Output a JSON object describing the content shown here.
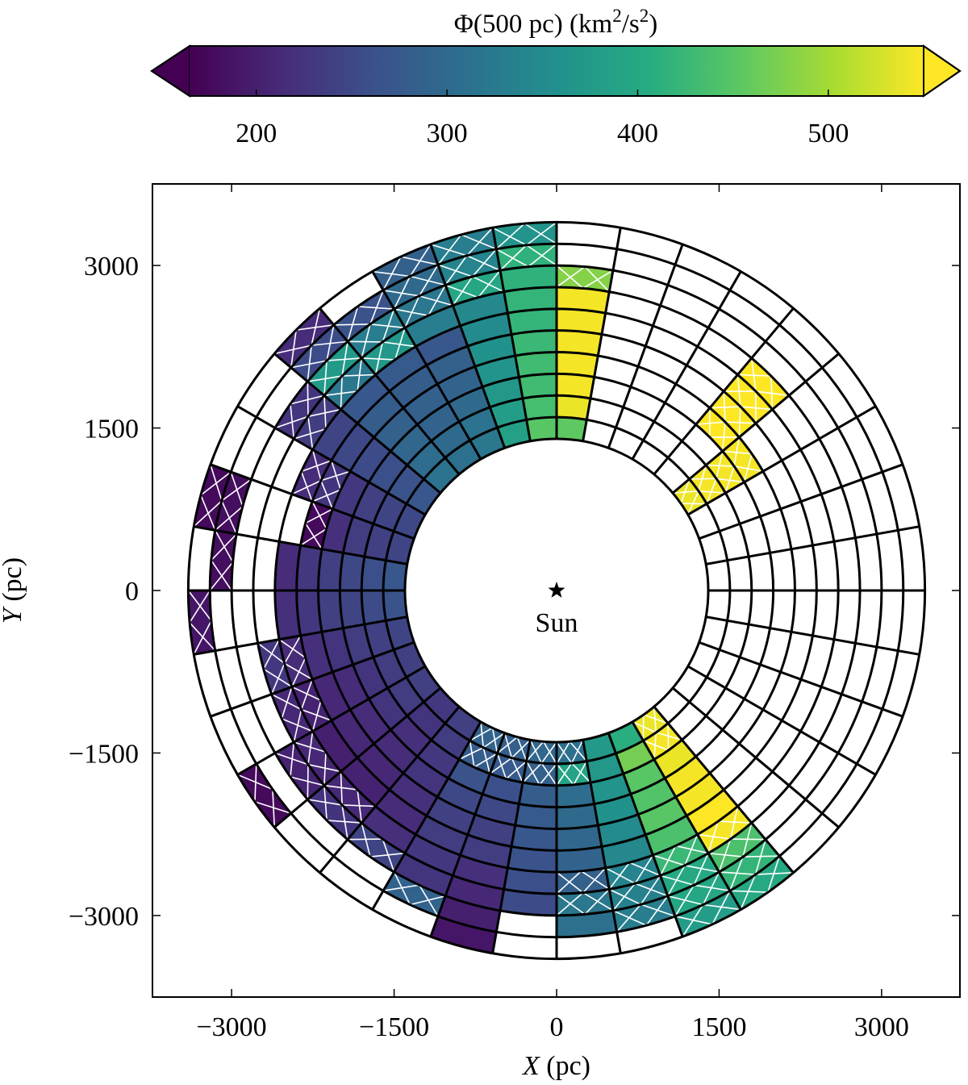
{
  "chart_data": {
    "type": "heatmap",
    "subtype": "polar-grid",
    "colorbar": {
      "label_main": "Φ(500 pc) (km",
      "label_unit_sq": "2",
      "label_mid": "/s",
      "label_unit_sq2": "2",
      "label_close": ")",
      "range": [
        165,
        550
      ],
      "ticks": [
        "200",
        "300",
        "400",
        "500"
      ],
      "tick_values": [
        200,
        300,
        400,
        500
      ],
      "colormap": "viridis",
      "extend": "both"
    },
    "xlabel": "X",
    "xlabel_unit": " (pc)",
    "ylabel": "Y",
    "ylabel_unit": " (pc)",
    "xlim": [
      -3750,
      3750
    ],
    "ylim": [
      -3750,
      3750
    ],
    "x_ticks": [
      "−3000",
      "−1500",
      "0",
      "1500",
      "3000"
    ],
    "x_tick_values": [
      -3000,
      -1500,
      0,
      1500,
      3000
    ],
    "y_ticks": [
      "3000",
      "1500",
      "0",
      "−1500",
      "−3000"
    ],
    "y_tick_values": [
      3000,
      1500,
      0,
      -1500,
      -3000
    ],
    "grid": {
      "r_inner": 1400,
      "r_outer": 3400,
      "n_rings": 10,
      "n_sectors": 36
    },
    "annotation": "Sun",
    "cells": [
      {
        "sector": 3,
        "ring": 0,
        "value": 540
      },
      {
        "sector": 3,
        "ring": 1,
        "value": 545
      },
      {
        "sector": 3,
        "ring": 2,
        "value": 545
      },
      {
        "sector": 3,
        "ring": 3,
        "value": 545
      },
      {
        "sector": 4,
        "ring": 3,
        "value": 550
      },
      {
        "sector": 4,
        "ring": 4,
        "value": 550
      },
      {
        "sector": 4,
        "ring": 5,
        "value": 550
      },
      {
        "sector": 4,
        "ring": 6,
        "value": 550
      },
      {
        "sector": 8,
        "ring": 0,
        "value": 455
      },
      {
        "sector": 8,
        "ring": 1,
        "value": 540
      },
      {
        "sector": 8,
        "ring": 2,
        "value": 545
      },
      {
        "sector": 8,
        "ring": 3,
        "value": 545
      },
      {
        "sector": 8,
        "ring": 4,
        "value": 545
      },
      {
        "sector": 8,
        "ring": 5,
        "value": 545
      },
      {
        "sector": 8,
        "ring": 6,
        "value": 545
      },
      {
        "sector": 8,
        "ring": 7,
        "value": 480
      },
      {
        "sector": 9,
        "ring": 0,
        "value": 450
      },
      {
        "sector": 9,
        "ring": 1,
        "value": 435
      },
      {
        "sector": 9,
        "ring": 2,
        "value": 430
      },
      {
        "sector": 9,
        "ring": 3,
        "value": 430
      },
      {
        "sector": 9,
        "ring": 4,
        "value": 425
      },
      {
        "sector": 9,
        "ring": 5,
        "value": 420
      },
      {
        "sector": 9,
        "ring": 6,
        "value": 420
      },
      {
        "sector": 9,
        "ring": 7,
        "value": 415
      },
      {
        "sector": 9,
        "ring": 8,
        "value": 415
      },
      {
        "sector": 9,
        "ring": 9,
        "value": 365
      },
      {
        "sector": 10,
        "ring": 0,
        "value": 385
      },
      {
        "sector": 10,
        "ring": 1,
        "value": 380
      },
      {
        "sector": 10,
        "ring": 2,
        "value": 370
      },
      {
        "sector": 10,
        "ring": 3,
        "value": 365
      },
      {
        "sector": 10,
        "ring": 4,
        "value": 360
      },
      {
        "sector": 10,
        "ring": 5,
        "value": 350
      },
      {
        "sector": 10,
        "ring": 6,
        "value": 345
      },
      {
        "sector": 10,
        "ring": 7,
        "value": 395
      },
      {
        "sector": 10,
        "ring": 8,
        "value": 340
      },
      {
        "sector": 10,
        "ring": 9,
        "value": 330
      },
      {
        "sector": 11,
        "ring": 0,
        "value": 320
      },
      {
        "sector": 11,
        "ring": 1,
        "value": 315
      },
      {
        "sector": 11,
        "ring": 2,
        "value": 300
      },
      {
        "sector": 11,
        "ring": 3,
        "value": 290
      },
      {
        "sector": 11,
        "ring": 4,
        "value": 285
      },
      {
        "sector": 11,
        "ring": 5,
        "value": 270
      },
      {
        "sector": 11,
        "ring": 6,
        "value": 330
      },
      {
        "sector": 11,
        "ring": 7,
        "value": 320
      },
      {
        "sector": 11,
        "ring": 8,
        "value": 300
      },
      {
        "sector": 11,
        "ring": 9,
        "value": 285
      },
      {
        "sector": 12,
        "ring": 0,
        "value": 310
      },
      {
        "sector": 12,
        "ring": 1,
        "value": 300
      },
      {
        "sector": 12,
        "ring": 2,
        "value": 290
      },
      {
        "sector": 12,
        "ring": 3,
        "value": 285
      },
      {
        "sector": 12,
        "ring": 4,
        "value": 280
      },
      {
        "sector": 12,
        "ring": 5,
        "value": 275
      },
      {
        "sector": 12,
        "ring": 6,
        "value": 370
      },
      {
        "sector": 12,
        "ring": 7,
        "value": 330
      },
      {
        "sector": 12,
        "ring": 8,
        "value": 265
      },
      {
        "sector": 13,
        "ring": 0,
        "value": 315
      },
      {
        "sector": 13,
        "ring": 1,
        "value": 305
      },
      {
        "sector": 13,
        "ring": 2,
        "value": 295
      },
      {
        "sector": 13,
        "ring": 3,
        "value": 285
      },
      {
        "sector": 13,
        "ring": 4,
        "value": 280
      },
      {
        "sector": 13,
        "ring": 5,
        "value": 270
      },
      {
        "sector": 13,
        "ring": 6,
        "value": 320
      },
      {
        "sector": 13,
        "ring": 7,
        "value": 375
      },
      {
        "sector": 13,
        "ring": 8,
        "value": 255
      },
      {
        "sector": 13,
        "ring": 9,
        "value": 215
      },
      {
        "sector": 14,
        "ring": 0,
        "value": 270
      },
      {
        "sector": 14,
        "ring": 1,
        "value": 265
      },
      {
        "sector": 14,
        "ring": 2,
        "value": 260
      },
      {
        "sector": 14,
        "ring": 3,
        "value": 255
      },
      {
        "sector": 14,
        "ring": 4,
        "value": 250
      },
      {
        "sector": 14,
        "ring": 5,
        "value": 245
      },
      {
        "sector": 14,
        "ring": 6,
        "value": 235
      },
      {
        "sector": 14,
        "ring": 7,
        "value": 225
      },
      {
        "sector": 15,
        "ring": 0,
        "value": 250
      },
      {
        "sector": 15,
        "ring": 1,
        "value": 245
      },
      {
        "sector": 15,
        "ring": 2,
        "value": 240
      },
      {
        "sector": 15,
        "ring": 3,
        "value": 230
      },
      {
        "sector": 15,
        "ring": 4,
        "value": 225
      },
      {
        "sector": 15,
        "ring": 5,
        "value": 215
      },
      {
        "sector": 16,
        "ring": 0,
        "value": 245
      },
      {
        "sector": 16,
        "ring": 1,
        "value": 240
      },
      {
        "sector": 16,
        "ring": 2,
        "value": 235
      },
      {
        "sector": 16,
        "ring": 3,
        "value": 220
      },
      {
        "sector": 16,
        "ring": 4,
        "value": 175
      },
      {
        "sector": 16,
        "ring": 8,
        "value": 180
      },
      {
        "sector": 16,
        "ring": 9,
        "value": 175
      },
      {
        "sector": 17,
        "ring": 0,
        "value": 270
      },
      {
        "sector": 17,
        "ring": 1,
        "value": 260
      },
      {
        "sector": 17,
        "ring": 2,
        "value": 250
      },
      {
        "sector": 17,
        "ring": 3,
        "value": 240
      },
      {
        "sector": 17,
        "ring": 4,
        "value": 230
      },
      {
        "sector": 17,
        "ring": 5,
        "value": 215
      },
      {
        "sector": 17,
        "ring": 8,
        "value": 180
      },
      {
        "sector": 18,
        "ring": 0,
        "value": 265
      },
      {
        "sector": 18,
        "ring": 1,
        "value": 255
      },
      {
        "sector": 18,
        "ring": 2,
        "value": 245
      },
      {
        "sector": 18,
        "ring": 3,
        "value": 240
      },
      {
        "sector": 18,
        "ring": 4,
        "value": 230
      },
      {
        "sector": 18,
        "ring": 5,
        "value": 220
      },
      {
        "sector": 18,
        "ring": 9,
        "value": 190
      },
      {
        "sector": 19,
        "ring": 0,
        "value": 245
      },
      {
        "sector": 19,
        "ring": 1,
        "value": 240
      },
      {
        "sector": 19,
        "ring": 2,
        "value": 235
      },
      {
        "sector": 19,
        "ring": 3,
        "value": 225
      },
      {
        "sector": 19,
        "ring": 4,
        "value": 220
      },
      {
        "sector": 19,
        "ring": 5,
        "value": 215
      },
      {
        "sector": 19,
        "ring": 6,
        "value": 230
      },
      {
        "sector": 20,
        "ring": 0,
        "value": 240
      },
      {
        "sector": 20,
        "ring": 1,
        "value": 235
      },
      {
        "sector": 20,
        "ring": 2,
        "value": 225
      },
      {
        "sector": 20,
        "ring": 3,
        "value": 215
      },
      {
        "sector": 20,
        "ring": 4,
        "value": 210
      },
      {
        "sector": 20,
        "ring": 5,
        "value": 205
      },
      {
        "sector": 20,
        "ring": 6,
        "value": 210
      },
      {
        "sector": 21,
        "ring": 0,
        "value": 240
      },
      {
        "sector": 21,
        "ring": 1,
        "value": 235
      },
      {
        "sector": 21,
        "ring": 2,
        "value": 225
      },
      {
        "sector": 21,
        "ring": 3,
        "value": 215
      },
      {
        "sector": 21,
        "ring": 4,
        "value": 210
      },
      {
        "sector": 21,
        "ring": 5,
        "value": 200
      },
      {
        "sector": 21,
        "ring": 6,
        "value": 210
      },
      {
        "sector": 21,
        "ring": 7,
        "value": 205
      },
      {
        "sector": 21,
        "ring": 9,
        "value": 175
      },
      {
        "sector": 22,
        "ring": 0,
        "value": 230
      },
      {
        "sector": 22,
        "ring": 1,
        "value": 225
      },
      {
        "sector": 22,
        "ring": 2,
        "value": 220
      },
      {
        "sector": 22,
        "ring": 3,
        "value": 215
      },
      {
        "sector": 22,
        "ring": 4,
        "value": 210
      },
      {
        "sector": 22,
        "ring": 5,
        "value": 205
      },
      {
        "sector": 22,
        "ring": 6,
        "value": 210
      },
      {
        "sector": 22,
        "ring": 7,
        "value": 225
      },
      {
        "sector": 23,
        "ring": 0,
        "value": 240
      },
      {
        "sector": 23,
        "ring": 1,
        "value": 235
      },
      {
        "sector": 23,
        "ring": 2,
        "value": 230
      },
      {
        "sector": 23,
        "ring": 3,
        "value": 225
      },
      {
        "sector": 23,
        "ring": 4,
        "value": 220
      },
      {
        "sector": 23,
        "ring": 5,
        "value": 215
      },
      {
        "sector": 23,
        "ring": 6,
        "value": 220
      },
      {
        "sector": 23,
        "ring": 7,
        "value": 245
      },
      {
        "sector": 24,
        "ring": 0,
        "value": 290
      },
      {
        "sector": 24,
        "ring": 1,
        "value": 280
      },
      {
        "sector": 24,
        "ring": 2,
        "value": 265
      },
      {
        "sector": 24,
        "ring": 3,
        "value": 250
      },
      {
        "sector": 24,
        "ring": 4,
        "value": 240
      },
      {
        "sector": 24,
        "ring": 5,
        "value": 235
      },
      {
        "sector": 24,
        "ring": 6,
        "value": 230
      },
      {
        "sector": 24,
        "ring": 7,
        "value": 225
      },
      {
        "sector": 24,
        "ring": 8,
        "value": 290
      },
      {
        "sector": 25,
        "ring": 0,
        "value": 285
      },
      {
        "sector": 25,
        "ring": 1,
        "value": 275
      },
      {
        "sector": 25,
        "ring": 2,
        "value": 260
      },
      {
        "sector": 25,
        "ring": 3,
        "value": 250
      },
      {
        "sector": 25,
        "ring": 4,
        "value": 240
      },
      {
        "sector": 25,
        "ring": 5,
        "value": 235
      },
      {
        "sector": 25,
        "ring": 6,
        "value": 220
      },
      {
        "sector": 25,
        "ring": 7,
        "value": 210
      },
      {
        "sector": 25,
        "ring": 8,
        "value": 200
      },
      {
        "sector": 25,
        "ring": 9,
        "value": 190
      },
      {
        "sector": 26,
        "ring": 0,
        "value": 295
      },
      {
        "sector": 26,
        "ring": 1,
        "value": 285
      },
      {
        "sector": 26,
        "ring": 2,
        "value": 280
      },
      {
        "sector": 26,
        "ring": 3,
        "value": 275
      },
      {
        "sector": 26,
        "ring": 4,
        "value": 270
      },
      {
        "sector": 26,
        "ring": 5,
        "value": 265
      },
      {
        "sector": 26,
        "ring": 6,
        "value": 260
      },
      {
        "sector": 26,
        "ring": 7,
        "value": 255
      },
      {
        "sector": 27,
        "ring": 0,
        "value": 310
      },
      {
        "sector": 27,
        "ring": 1,
        "value": 390
      },
      {
        "sector": 27,
        "ring": 2,
        "value": 305
      },
      {
        "sector": 27,
        "ring": 3,
        "value": 300
      },
      {
        "sector": 27,
        "ring": 4,
        "value": 295
      },
      {
        "sector": 27,
        "ring": 5,
        "value": 290
      },
      {
        "sector": 27,
        "ring": 6,
        "value": 285
      },
      {
        "sector": 27,
        "ring": 7,
        "value": 320
      },
      {
        "sector": 27,
        "ring": 8,
        "value": 310
      },
      {
        "sector": 28,
        "ring": 0,
        "value": 375
      },
      {
        "sector": 28,
        "ring": 1,
        "value": 370
      },
      {
        "sector": 28,
        "ring": 2,
        "value": 365
      },
      {
        "sector": 28,
        "ring": 3,
        "value": 360
      },
      {
        "sector": 28,
        "ring": 4,
        "value": 350
      },
      {
        "sector": 28,
        "ring": 5,
        "value": 345
      },
      {
        "sector": 28,
        "ring": 6,
        "value": 340
      },
      {
        "sector": 28,
        "ring": 7,
        "value": 335
      },
      {
        "sector": 28,
        "ring": 8,
        "value": 330
      },
      {
        "sector": 29,
        "ring": 0,
        "value": 410
      },
      {
        "sector": 29,
        "ring": 1,
        "value": 470
      },
      {
        "sector": 29,
        "ring": 2,
        "value": 450
      },
      {
        "sector": 29,
        "ring": 3,
        "value": 445
      },
      {
        "sector": 29,
        "ring": 4,
        "value": 450
      },
      {
        "sector": 29,
        "ring": 5,
        "value": 440
      },
      {
        "sector": 29,
        "ring": 6,
        "value": 425
      },
      {
        "sector": 29,
        "ring": 7,
        "value": 400
      },
      {
        "sector": 29,
        "ring": 8,
        "value": 395
      },
      {
        "sector": 29,
        "ring": 9,
        "value": 380
      },
      {
        "sector": 30,
        "ring": 0,
        "value": 540
      },
      {
        "sector": 30,
        "ring": 1,
        "value": 545
      },
      {
        "sector": 30,
        "ring": 2,
        "value": 540
      },
      {
        "sector": 30,
        "ring": 3,
        "value": 545
      },
      {
        "sector": 30,
        "ring": 4,
        "value": 545
      },
      {
        "sector": 30,
        "ring": 5,
        "value": 550
      },
      {
        "sector": 30,
        "ring": 6,
        "value": 545
      },
      {
        "sector": 30,
        "ring": 7,
        "value": 440
      },
      {
        "sector": 30,
        "ring": 8,
        "value": 420
      },
      {
        "sector": 30,
        "ring": 9,
        "value": 400
      }
    ],
    "hatched_cells": [
      [
        3,
        0
      ],
      [
        3,
        1
      ],
      [
        3,
        2
      ],
      [
        3,
        3
      ],
      [
        4,
        3
      ],
      [
        4,
        4
      ],
      [
        4,
        5
      ],
      [
        4,
        6
      ],
      [
        8,
        7
      ],
      [
        9,
        8
      ],
      [
        9,
        9
      ],
      [
        10,
        7
      ],
      [
        10,
        8
      ],
      [
        10,
        9
      ],
      [
        11,
        7
      ],
      [
        11,
        8
      ],
      [
        11,
        9
      ],
      [
        12,
        6
      ],
      [
        12,
        7
      ],
      [
        12,
        8
      ],
      [
        13,
        6
      ],
      [
        13,
        7
      ],
      [
        13,
        8
      ],
      [
        13,
        9
      ],
      [
        14,
        6
      ],
      [
        14,
        7
      ],
      [
        15,
        4
      ],
      [
        15,
        5
      ],
      [
        16,
        4
      ],
      [
        16,
        8
      ],
      [
        16,
        9
      ],
      [
        17,
        8
      ],
      [
        18,
        9
      ],
      [
        19,
        5
      ],
      [
        19,
        6
      ],
      [
        20,
        5
      ],
      [
        20,
        6
      ],
      [
        21,
        6
      ],
      [
        21,
        7
      ],
      [
        21,
        9
      ],
      [
        22,
        6
      ],
      [
        22,
        7
      ],
      [
        23,
        7
      ],
      [
        24,
        0
      ],
      [
        24,
        1
      ],
      [
        24,
        8
      ],
      [
        25,
        0
      ],
      [
        25,
        1
      ],
      [
        26,
        0
      ],
      [
        26,
        1
      ],
      [
        27,
        0
      ],
      [
        27,
        1
      ],
      [
        27,
        6
      ],
      [
        27,
        7
      ],
      [
        28,
        6
      ],
      [
        28,
        7
      ],
      [
        28,
        8
      ],
      [
        29,
        6
      ],
      [
        29,
        7
      ],
      [
        29,
        8
      ],
      [
        29,
        9
      ],
      [
        30,
        0
      ],
      [
        30,
        1
      ],
      [
        30,
        6
      ],
      [
        30,
        7
      ],
      [
        30,
        8
      ],
      [
        30,
        9
      ]
    ]
  }
}
